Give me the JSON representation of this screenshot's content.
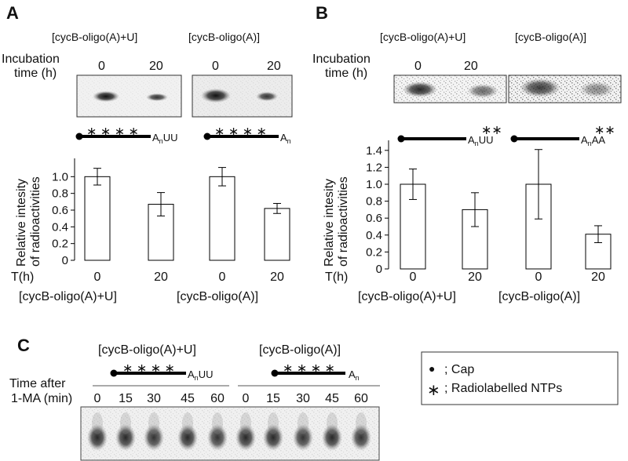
{
  "panel_a": {
    "letter": "A",
    "col_labels": [
      "[cycB-oligo(A)+U]",
      "[cycB-oligo(A)]"
    ],
    "incubation_label": [
      "Incubation",
      "time (h)"
    ],
    "gel_lane_labels": [
      "0",
      "20",
      "0",
      "20"
    ],
    "constructs": [
      {
        "marks": "∗ ∗ ∗ ∗",
        "tail_main": "A",
        "tail_sub": "n",
        "tail_end": "UU"
      },
      {
        "marks": "∗ ∗ ∗ ∗",
        "tail_main": "A",
        "tail_sub": "n",
        "tail_end": ""
      }
    ],
    "ylabel": [
      "Relative intesity",
      "of radioactivities"
    ],
    "x_axis_title": "T(h)",
    "x_ticks": [
      "0",
      "20",
      "0",
      "20"
    ],
    "group_labels": [
      "[cycB-oligo(A)+U]",
      "[cycB-oligo(A)]"
    ]
  },
  "panel_b": {
    "letter": "B",
    "col_labels": [
      "[cycB-oligo(A)+U]",
      "[cycB-oligo(A)]"
    ],
    "incubation_label": [
      "Incubation",
      "time (h)"
    ],
    "gel_lane_labels": [
      "0",
      "20"
    ],
    "constructs": [
      {
        "marks": "∗∗",
        "tail_main": "A",
        "tail_sub": "n",
        "tail_end": "UU"
      },
      {
        "marks": "∗∗",
        "tail_main": "A",
        "tail_sub": "n",
        "tail_end": "AA"
      }
    ],
    "ylabel": [
      "Relative intesity",
      "of radioactivities"
    ],
    "x_axis_title": "T(h)",
    "x_ticks": [
      "0",
      "20",
      "0",
      "20"
    ],
    "group_labels": [
      "[cycB-oligo(A)+U]",
      "[cycB-oligo(A)]"
    ]
  },
  "panel_c": {
    "letter": "C",
    "group_labels": [
      "[cycB-oligo(A)+U]",
      "[cycB-oligo(A)]"
    ],
    "constructs": [
      {
        "marks": "∗ ∗ ∗ ∗",
        "tail_main": "A",
        "tail_sub": "n",
        "tail_end": "UU"
      },
      {
        "marks": "∗ ∗ ∗ ∗",
        "tail_main": "A",
        "tail_sub": "n",
        "tail_end": ""
      }
    ],
    "time_label": [
      "Time after",
      "1-MA (min)"
    ],
    "lane_labels": [
      "0",
      "15",
      "30",
      "45",
      "60",
      "0",
      "15",
      "30",
      "45",
      "60"
    ],
    "band_intensity": [
      0.9,
      0.9,
      0.85,
      0.9,
      0.85,
      0.9,
      0.9,
      0.85,
      0.9,
      0.85
    ]
  },
  "legend": {
    "items": [
      {
        "symbol": "●",
        "label": "; Cap"
      },
      {
        "symbol": "∗",
        "label": "; Radiolabelled NTPs"
      }
    ]
  },
  "chart_data": [
    {
      "type": "bar",
      "panel": "A",
      "categories": [
        "0",
        "20",
        "0",
        "20"
      ],
      "groups": [
        "[cycB-oligo(A)+U]",
        "[cycB-oligo(A)]"
      ],
      "values": [
        1.0,
        0.67,
        1.0,
        0.62
      ],
      "errors": [
        0.1,
        0.14,
        0.11,
        0.06
      ],
      "yticks": [
        "0",
        "0.2",
        "0.4",
        "0.6",
        "0.8",
        "1.0"
      ],
      "ylim": [
        0,
        1.2
      ],
      "ylabel": "Relative intesity of radioactivities",
      "xlabel": "T(h)"
    },
    {
      "type": "bar",
      "panel": "B",
      "categories": [
        "0",
        "20",
        "0",
        "20"
      ],
      "groups": [
        "[cycB-oligo(A)+U]",
        "[cycB-oligo(A)]"
      ],
      "values": [
        1.0,
        0.7,
        1.0,
        0.41
      ],
      "errors": [
        0.18,
        0.2,
        0.41,
        0.1
      ],
      "yticks": [
        "0",
        "0.2",
        "0.4",
        "0.6",
        "0.8",
        "1.0",
        "1.2",
        "1.4"
      ],
      "ylim": [
        0,
        1.5
      ],
      "ylabel": "Relative intesity of radioactivities",
      "xlabel": "T(h)"
    }
  ]
}
